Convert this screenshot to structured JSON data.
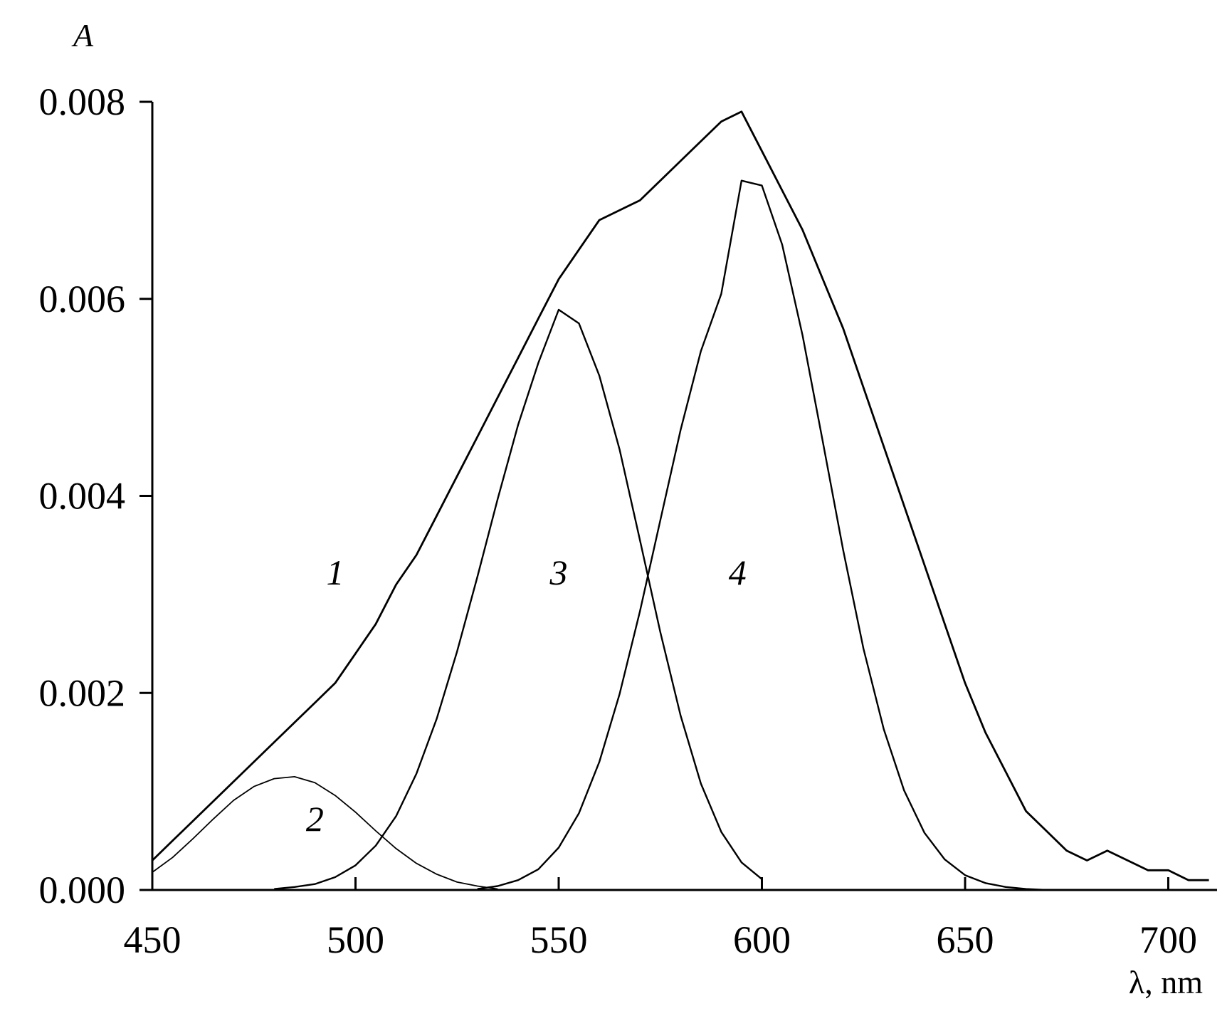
{
  "chart_data": {
    "type": "line",
    "xlabel": "λ, nm",
    "ylabel": "A",
    "xlim": [
      450,
      712
    ],
    "ylim": [
      0,
      0.008
    ],
    "x_ticks": [
      450,
      500,
      550,
      600,
      650,
      700
    ],
    "x_tick_labels": [
      "450",
      "500",
      "550",
      "600",
      "650",
      "700"
    ],
    "y_ticks": [
      0,
      0.002,
      0.004,
      0.006,
      0.008
    ],
    "y_tick_labels": [
      "0.000",
      "0.002",
      "0.004",
      "0.006",
      "0.008"
    ],
    "grid": false,
    "legend": "none",
    "series": [
      {
        "label": "1",
        "x": [
          450,
          455,
          460,
          465,
          470,
          475,
          480,
          485,
          490,
          495,
          500,
          505,
          510,
          515,
          520,
          525,
          530,
          535,
          540,
          545,
          550,
          555,
          560,
          565,
          570,
          575,
          580,
          585,
          590,
          595,
          600,
          605,
          610,
          615,
          620,
          625,
          630,
          635,
          640,
          645,
          650,
          655,
          660,
          665,
          670,
          675,
          680,
          685,
          690,
          695,
          700,
          705,
          710
        ],
        "y": [
          0.0003,
          0.0005,
          0.0007,
          0.0009,
          0.0011,
          0.0013,
          0.0015,
          0.0017,
          0.0019,
          0.0021,
          0.0024,
          0.0027,
          0.0031,
          0.0034,
          0.0038,
          0.0042,
          0.0046,
          0.005,
          0.0054,
          0.0058,
          0.0062,
          0.0065,
          0.0068,
          0.0069,
          0.007,
          0.0072,
          0.0074,
          0.0076,
          0.0078,
          0.0079,
          0.0075,
          0.0071,
          0.0067,
          0.0062,
          0.0057,
          0.0051,
          0.0045,
          0.0039,
          0.0033,
          0.0027,
          0.0021,
          0.0016,
          0.0012,
          0.0008,
          0.0006,
          0.0004,
          0.0003,
          0.0004,
          0.0003,
          0.0002,
          0.0002,
          0.0001,
          0.0001
        ]
      },
      {
        "label": "2",
        "x": [
          450,
          455,
          460,
          465,
          470,
          475,
          480,
          485,
          490,
          495,
          500,
          505,
          510,
          515,
          520,
          525,
          530,
          535
        ],
        "y": [
          0.00018,
          0.00033,
          0.00052,
          0.00072,
          0.00091,
          0.00105,
          0.00113,
          0.00115,
          0.00109,
          0.00096,
          0.00079,
          0.0006,
          0.00042,
          0.00027,
          0.00016,
          8e-05,
          4e-05,
          1e-05
        ]
      },
      {
        "label": "3",
        "x": [
          480,
          485,
          490,
          495,
          500,
          505,
          510,
          515,
          520,
          525,
          530,
          535,
          540,
          545,
          550,
          555,
          560,
          565,
          570,
          575,
          580,
          585,
          590,
          595,
          600
        ],
        "y": [
          1e-05,
          3e-05,
          6e-05,
          0.00013,
          0.00025,
          0.00045,
          0.00075,
          0.00118,
          0.00174,
          0.00242,
          0.00318,
          0.00397,
          0.00472,
          0.00535,
          0.00589,
          0.00575,
          0.00522,
          0.00447,
          0.00355,
          0.00262,
          0.00177,
          0.00108,
          0.00059,
          0.00028,
          0.00011
        ]
      },
      {
        "label": "4",
        "x": [
          530,
          535,
          540,
          545,
          550,
          555,
          560,
          565,
          570,
          575,
          580,
          585,
          590,
          595,
          600,
          605,
          610,
          615,
          620,
          625,
          630,
          635,
          640,
          645,
          650,
          655,
          660,
          665,
          670
        ],
        "y": [
          1e-05,
          4e-05,
          0.0001,
          0.00021,
          0.00043,
          0.00078,
          0.0013,
          0.00199,
          0.00283,
          0.00375,
          0.00467,
          0.00547,
          0.00605,
          0.0072,
          0.00715,
          0.00655,
          0.00563,
          0.00455,
          0.00345,
          0.00245,
          0.00163,
          0.00101,
          0.00058,
          0.00031,
          0.00015,
          7e-05,
          3e-05,
          1e-05,
          0
        ]
      }
    ],
    "annotations": [
      "1",
      "2",
      "3",
      "4"
    ]
  }
}
